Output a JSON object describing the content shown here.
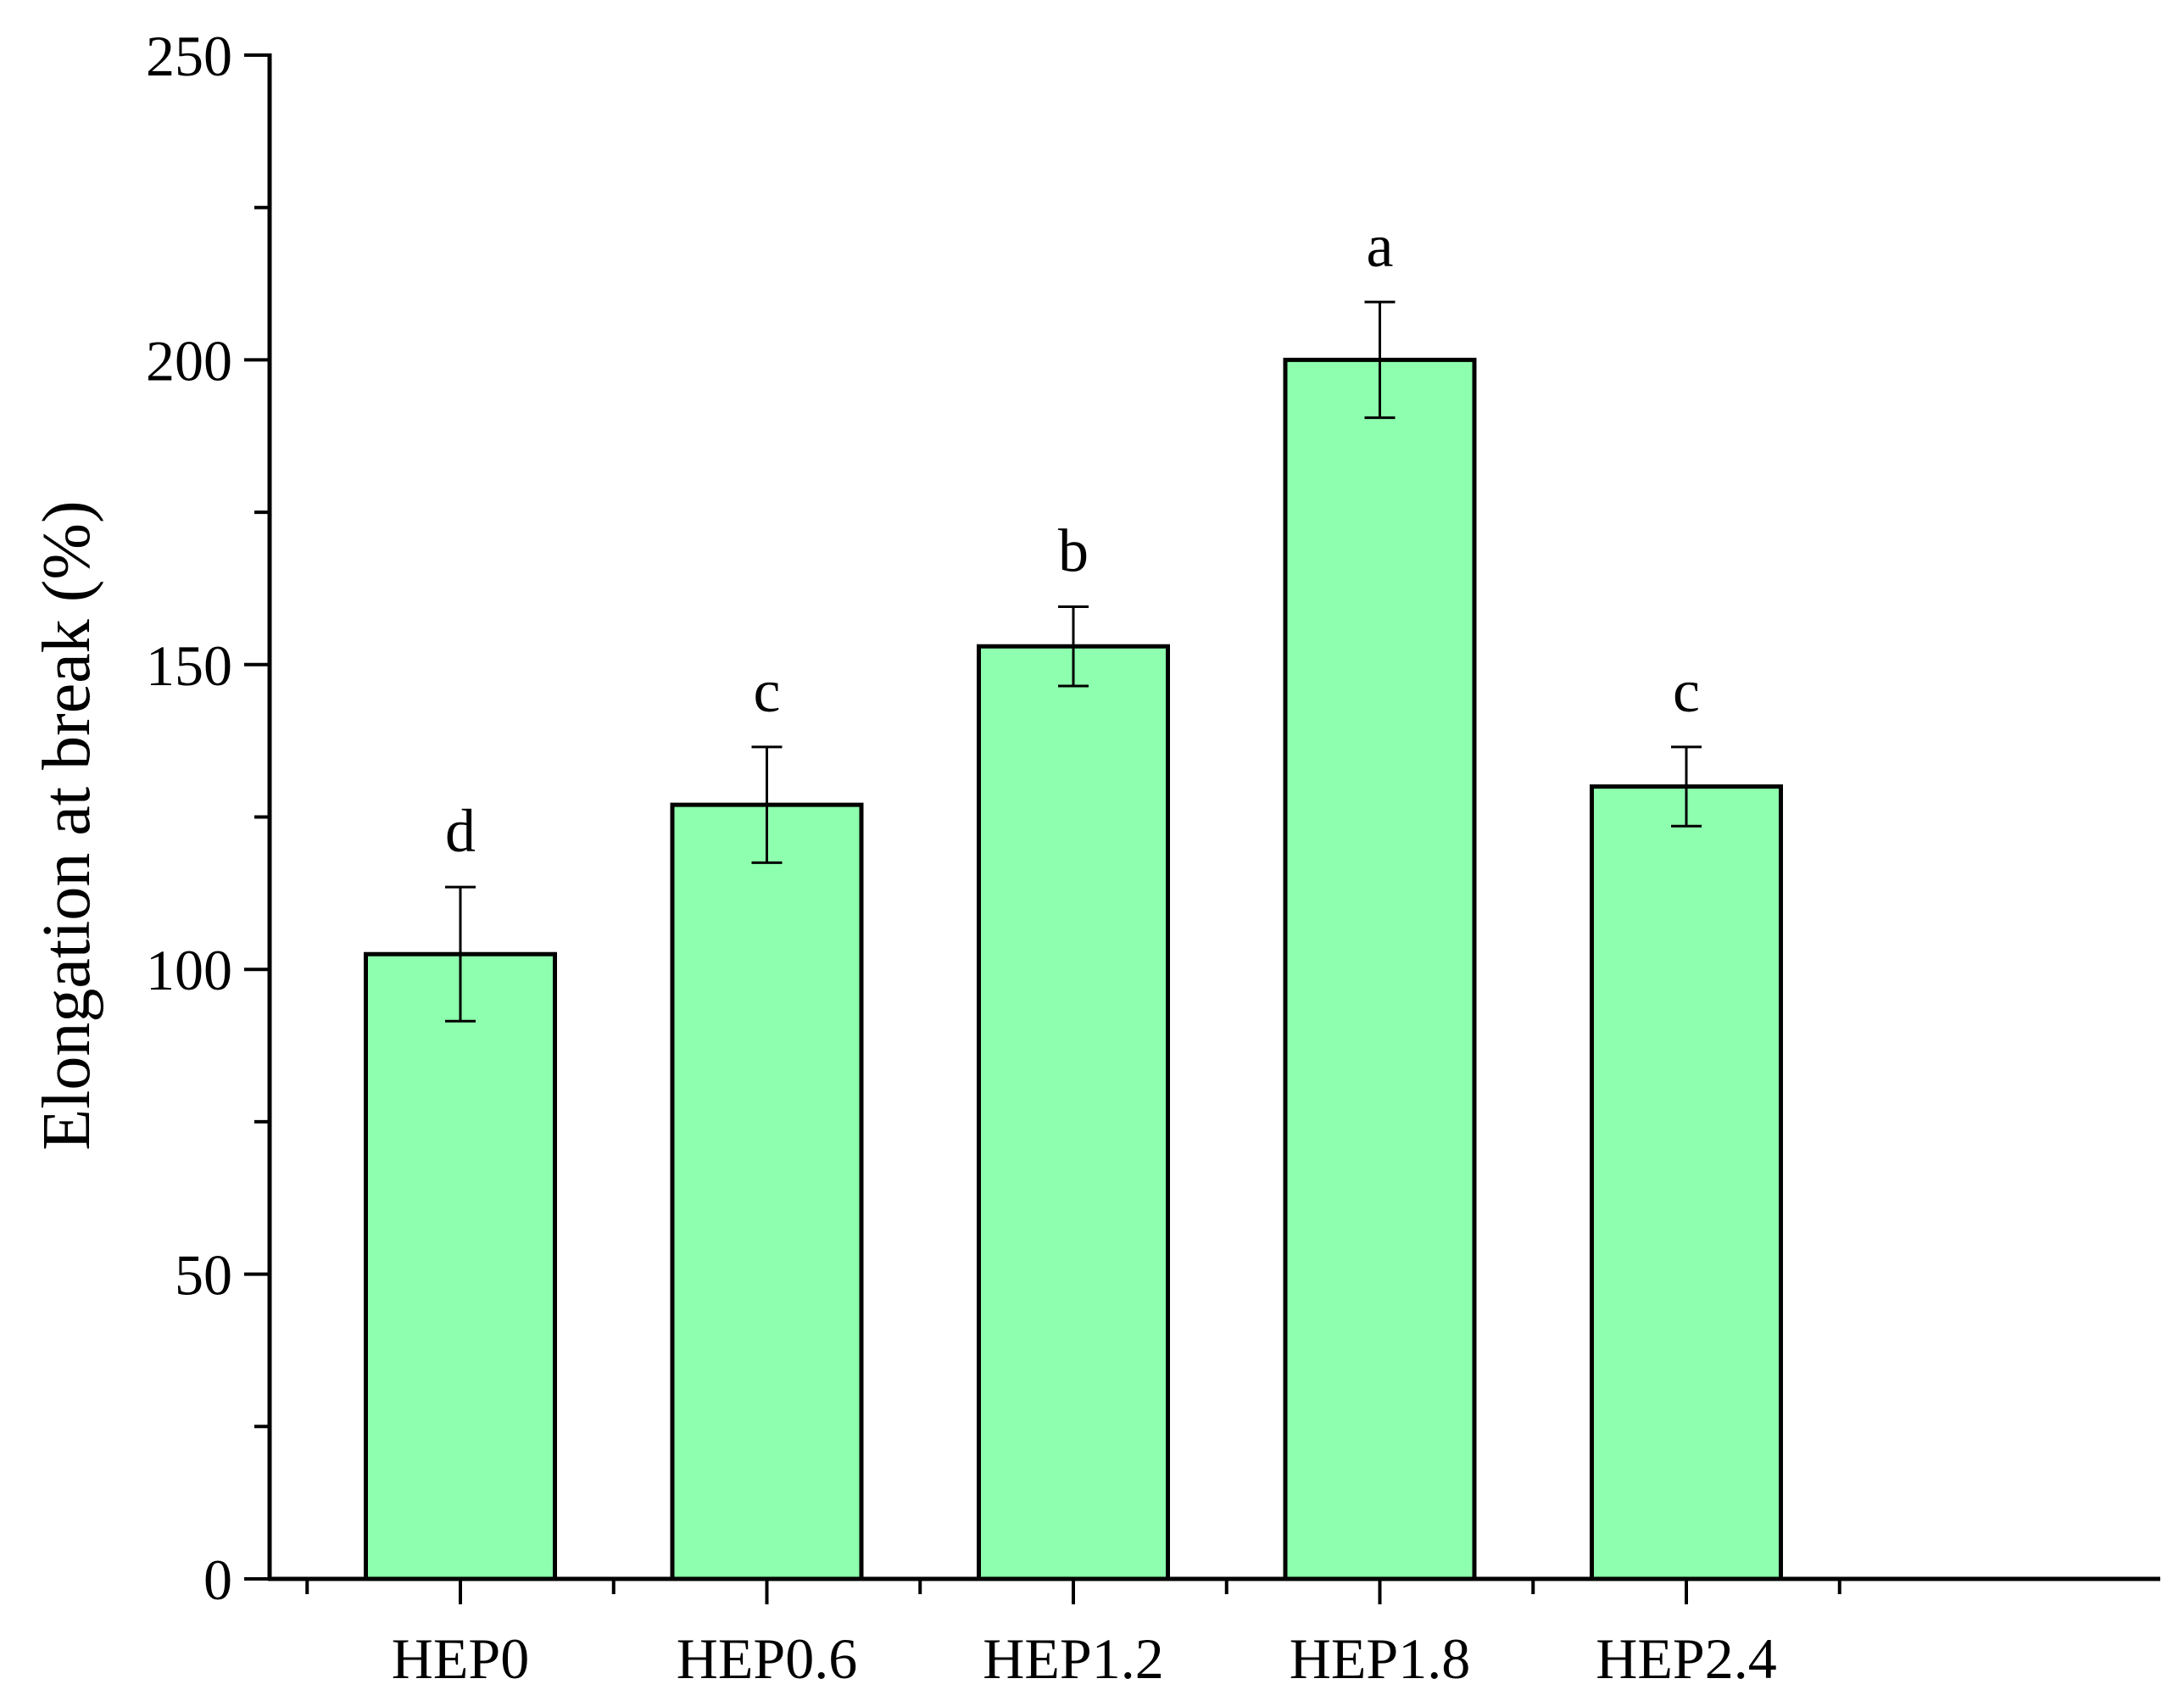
{
  "chart_data": {
    "type": "bar",
    "title": "",
    "xlabel": "",
    "ylabel": "Elongation at break (%)",
    "ylim": [
      0,
      250
    ],
    "yticks": [
      0,
      50,
      100,
      150,
      200,
      250
    ],
    "y_minor_step": 25,
    "grid": false,
    "legend": "none",
    "categories": [
      "HEP0",
      "HEP0.6",
      "HEP1.2",
      "HEP1.8",
      "HEP2.4"
    ],
    "values": [
      102.5,
      127,
      153,
      200,
      130
    ],
    "errors": [
      11,
      9.5,
      6.5,
      9.5,
      6.5
    ],
    "significance": [
      "d",
      "c",
      "b",
      "a",
      "c"
    ],
    "bar_color": "#8effae",
    "edge_color": "#000000"
  }
}
